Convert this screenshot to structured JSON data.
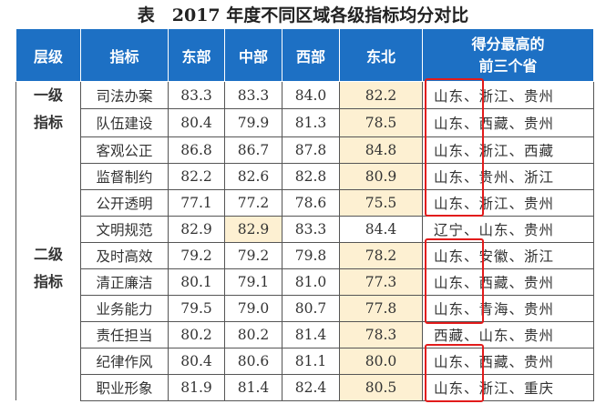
{
  "title": "表　2017 年度不同区域各级指标均分对比",
  "headers": [
    "层级",
    "指标",
    "东部",
    "中部",
    "西部",
    "东北",
    "得分最高的\n前三个省"
  ],
  "header_last": [
    "得分最高的",
    "前三个省"
  ],
  "levels": [
    "一级\n指标",
    "二级\n指标"
  ],
  "rows": [
    {
      "indicator": "司法办案",
      "east": "83.3",
      "central": "83.3",
      "west": "84.0",
      "northeast": "82.2",
      "top3": "山东、浙江、贵州"
    },
    {
      "indicator": "队伍建设",
      "east": "80.4",
      "central": "79.9",
      "west": "81.3",
      "northeast": "78.5",
      "top3": "山东、西藏、贵州"
    },
    {
      "indicator": "客观公正",
      "east": "86.8",
      "central": "86.7",
      "west": "87.8",
      "northeast": "84.8",
      "top3": "山东、浙江、西藏"
    },
    {
      "indicator": "监督制约",
      "east": "82.2",
      "central": "82.6",
      "west": "82.8",
      "northeast": "80.9",
      "top3": "山东、贵州、浙江"
    },
    {
      "indicator": "公开透明",
      "east": "77.1",
      "central": "77.2",
      "west": "78.6",
      "northeast": "75.5",
      "top3": "山东、浙江、贵州"
    },
    {
      "indicator": "文明规范",
      "east": "82.9",
      "central": "82.9",
      "west": "83.3",
      "northeast": "84.4",
      "top3": "辽宁、山东、贵州"
    },
    {
      "indicator": "及时高效",
      "east": "79.2",
      "central": "79.2",
      "west": "79.8",
      "northeast": "78.2",
      "top3": "山东、安徽、浙江"
    },
    {
      "indicator": "清正廉洁",
      "east": "80.1",
      "central": "79.1",
      "west": "81.0",
      "northeast": "77.3",
      "top3": "山东、西藏、贵州"
    },
    {
      "indicator": "业务能力",
      "east": "79.5",
      "central": "79.0",
      "west": "80.7",
      "northeast": "77.8",
      "top3": "山东、青海、贵州"
    },
    {
      "indicator": "责任担当",
      "east": "80.2",
      "central": "80.2",
      "west": "81.4",
      "northeast": "78.3",
      "top3": "西藏、山东、贵州"
    },
    {
      "indicator": "纪律作风",
      "east": "80.4",
      "central": "80.6",
      "west": "81.1",
      "northeast": "80.0",
      "top3": "山东、西藏、贵州"
    },
    {
      "indicator": "职业形象",
      "east": "81.9",
      "central": "81.4",
      "west": "82.4",
      "northeast": "80.5",
      "top3": "山东、浙江、重庆"
    }
  ],
  "colors": {
    "header": "#1d70c4",
    "highlight": "#fdf0d2",
    "box": "#e21b1b"
  }
}
